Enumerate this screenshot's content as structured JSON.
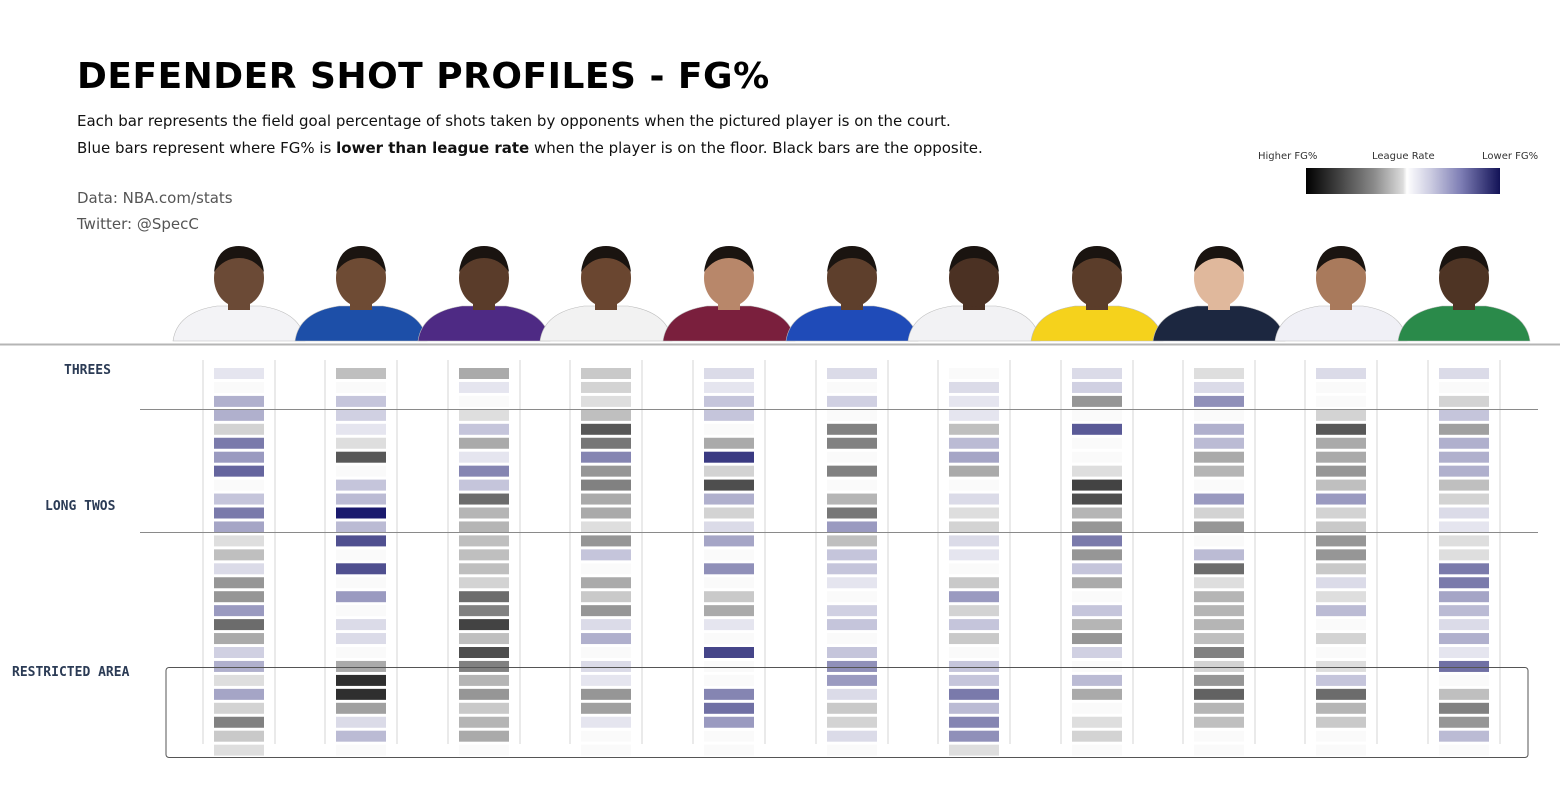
{
  "header": {
    "title": "DEFENDER SHOT PROFILES - FG%",
    "subtitle_line1": "Each bar represents the field goal percentage of shots taken by opponents when the pictured player is on the court.",
    "subtitle_line2_pre": "Blue bars represent where FG% is ",
    "subtitle_line2_bold": "lower than league rate",
    "subtitle_line2_post": " when the player is on the floor. Black bars are the opposite.",
    "source": "Data: NBA.com/stats",
    "twitter": "Twitter: @SpecC"
  },
  "legend": {
    "left_label": "Higher FG%",
    "mid_label": "League Rate",
    "right_label": "Lower FG%"
  },
  "colors": {
    "background": "#ffffff",
    "title": "#000000",
    "zone_label": "#2b3b55",
    "higher_fg_extreme": "#1a1a1a",
    "lower_fg_extreme": "#1a1a6e",
    "divider": "#888888"
  },
  "zones": [
    {
      "label": "THREES",
      "row_start": 0,
      "row_end": 2
    },
    {
      "label": "LONG TWOS",
      "row_start": 3,
      "row_end": 11
    },
    {
      "label": "RESTRICTED AREA",
      "row_start": 12,
      "row_end": 27
    }
  ],
  "chart_data": {
    "type": "heatmap",
    "value_scale": "signed difference from league FG% (negative = higher FG% / black, positive = lower FG% / blue)",
    "rows": 28,
    "players": [
      {
        "jersey": "white-red",
        "values": [
          0.05,
          0,
          0.3,
          0.3,
          -0.1,
          0.55,
          0.4,
          0.65,
          0,
          0.2,
          0.55,
          0.35,
          -0.05,
          -0.2,
          0.1,
          -0.4,
          -0.4,
          0.4,
          -0.6,
          -0.3,
          0.15,
          0.3,
          -0.05,
          0.35,
          -0.1,
          -0.5,
          -0.15,
          -0.05
        ]
      },
      {
        "jersey": "white-blue",
        "values": [
          -0.2,
          0,
          0.2,
          0.15,
          0.05,
          -0.05,
          -0.7,
          0,
          0.2,
          0.25,
          1.0,
          0.25,
          0.75,
          0,
          0.75,
          0,
          0.4,
          0,
          0.1,
          0.1,
          0,
          -0.3,
          -0.9,
          -0.9,
          -0.35,
          0.1,
          0.25,
          0
        ]
      },
      {
        "jersey": "purple",
        "values": [
          -0.3,
          0.05,
          0,
          -0.05,
          0.2,
          -0.3,
          0.05,
          0.5,
          0.2,
          -0.6,
          -0.25,
          -0.25,
          -0.2,
          -0.2,
          -0.2,
          -0.1,
          -0.6,
          -0.5,
          -0.8,
          -0.2,
          -0.75,
          -0.5,
          -0.25,
          -0.4,
          -0.15,
          -0.25,
          -0.3,
          0
        ]
      },
      {
        "jersey": "white-green",
        "values": [
          -0.15,
          -0.1,
          -0.05,
          -0.2,
          -0.7,
          -0.55,
          0.5,
          -0.4,
          -0.5,
          -0.3,
          -0.3,
          -0.05,
          -0.4,
          0.2,
          0,
          -0.3,
          -0.15,
          -0.4,
          0.1,
          0.3,
          0,
          0.1,
          0.05,
          -0.4,
          -0.35,
          0.05,
          0,
          0
        ]
      },
      {
        "jersey": "maroon",
        "values": [
          0.1,
          0.05,
          0.2,
          0.2,
          0,
          -0.3,
          0.85,
          -0.1,
          -0.75,
          0.3,
          -0.1,
          0.1,
          0.35,
          0,
          0.45,
          0,
          -0.15,
          -0.3,
          0.05,
          0,
          0.8,
          0,
          0,
          0.5,
          0.6,
          0.4,
          0,
          0
        ]
      },
      {
        "jersey": "blue",
        "values": [
          0.1,
          0,
          0.15,
          0,
          -0.5,
          -0.5,
          0,
          -0.5,
          0,
          -0.25,
          -0.55,
          0.4,
          -0.2,
          0.2,
          0.2,
          0.05,
          0,
          0.15,
          0.2,
          0,
          0.2,
          0.45,
          0.4,
          0.1,
          -0.15,
          -0.1,
          0.1,
          0
        ]
      },
      {
        "jersey": "white-black",
        "values": [
          0,
          0.1,
          0.05,
          0.05,
          -0.2,
          0.25,
          0.35,
          -0.3,
          0,
          0.1,
          -0.05,
          -0.1,
          0.1,
          0.05,
          0,
          -0.15,
          0.4,
          -0.1,
          0.2,
          -0.15,
          0,
          0.2,
          0.2,
          0.55,
          0.25,
          0.5,
          0.45,
          -0.05
        ]
      },
      {
        "jersey": "yellow",
        "values": [
          0.1,
          0.15,
          -0.4,
          0,
          0.7,
          0,
          0,
          -0.05,
          -0.8,
          -0.75,
          -0.25,
          -0.4,
          0.55,
          -0.4,
          0.2,
          -0.3,
          0,
          0.2,
          -0.25,
          -0.4,
          0.15,
          0,
          0.25,
          -0.3,
          0,
          -0.05,
          -0.1,
          0
        ]
      },
      {
        "jersey": "navy",
        "values": [
          -0.05,
          0.1,
          0.45,
          0,
          0.3,
          0.25,
          -0.3,
          -0.25,
          0,
          0.4,
          -0.1,
          -0.4,
          0,
          0.25,
          -0.6,
          -0.05,
          -0.25,
          -0.25,
          -0.25,
          -0.2,
          -0.5,
          -0.1,
          -0.4,
          -0.65,
          -0.25,
          -0.2,
          0,
          0
        ]
      },
      {
        "jersey": "white-navy",
        "values": [
          0.1,
          0,
          0,
          -0.1,
          -0.7,
          -0.3,
          -0.3,
          -0.4,
          -0.2,
          0.4,
          -0.1,
          -0.15,
          -0.4,
          -0.4,
          -0.15,
          0.1,
          -0.05,
          0.25,
          0,
          -0.1,
          0,
          -0.05,
          0.2,
          -0.6,
          -0.25,
          -0.15,
          0,
          0
        ]
      },
      {
        "jersey": "green",
        "values": [
          0.1,
          0,
          -0.1,
          0.2,
          -0.35,
          0.3,
          0.3,
          0.3,
          -0.2,
          -0.1,
          0.1,
          0.05,
          -0.05,
          -0.05,
          0.55,
          0.55,
          0.35,
          0.25,
          0.1,
          0.3,
          0.05,
          0.6,
          0,
          -0.2,
          -0.5,
          -0.4,
          0.25,
          0
        ]
      }
    ]
  }
}
